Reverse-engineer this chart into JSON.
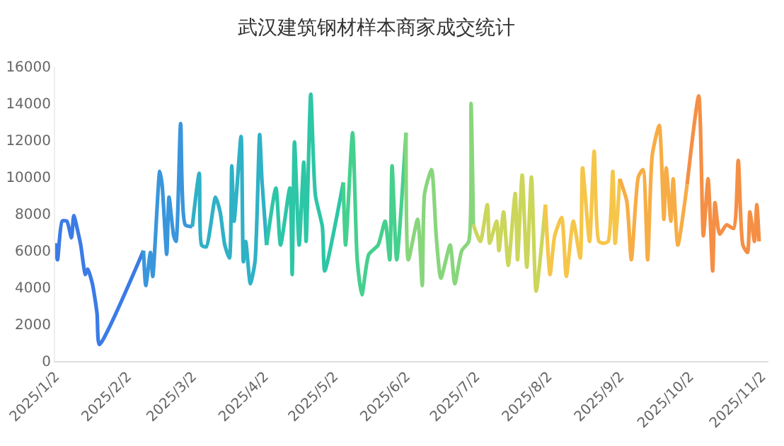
{
  "chart_data": {
    "type": "line",
    "title": "武汉建筑钢材样本商家成交统计",
    "xlim": [
      "2025-01-02",
      "2025-11-05"
    ],
    "xticks": [
      {
        "value": "2025-01-02",
        "label": "2025/1/2"
      },
      {
        "value": "2025-02-02",
        "label": "2025/2/2"
      },
      {
        "value": "2025-03-02",
        "label": "2025/3/2"
      },
      {
        "value": "2025-04-02",
        "label": "2025/4/2"
      },
      {
        "value": "2025-05-02",
        "label": "2025/5/2"
      },
      {
        "value": "2025-06-02",
        "label": "2025/6/2"
      },
      {
        "value": "2025-07-02",
        "label": "2025/7/2"
      },
      {
        "value": "2025-08-02",
        "label": "2025/8/2"
      },
      {
        "value": "2025-09-02",
        "label": "2025/9/2"
      },
      {
        "value": "2025-10-02",
        "label": "2025/10/2"
      },
      {
        "value": "2025-11-02",
        "label": "2025/11/2"
      }
    ],
    "ylim": [
      0,
      16000
    ],
    "yticks": [
      0,
      2000,
      4000,
      6000,
      8000,
      10000,
      12000,
      14000,
      16000
    ],
    "marker": "none",
    "line_style": "solid",
    "series": [
      {
        "color": "#3b7be6",
        "x": [
          "2025-01-02",
          "2025-01-03",
          "2025-01-05",
          "2025-01-07",
          "2025-01-09",
          "2025-01-10",
          "2025-01-12",
          "2025-01-13",
          "2025-01-15",
          "2025-01-16",
          "2025-01-18",
          "2025-01-20",
          "2025-01-21",
          "2025-02-09"
        ],
        "values": [
          6400,
          5500,
          7600,
          7600,
          6700,
          7900,
          6900,
          6300,
          4700,
          5000,
          4200,
          2600,
          900,
          6000
        ]
      },
      {
        "color": "#3996dc",
        "x": [
          "2025-02-09",
          "2025-02-10",
          "2025-02-12",
          "2025-02-13",
          "2025-02-16",
          "2025-02-17",
          "2025-02-19",
          "2025-02-20",
          "2025-02-22",
          "2025-02-23",
          "2025-02-25",
          "2025-02-27",
          "2025-03-02"
        ],
        "values": [
          6000,
          4100,
          5900,
          4600,
          10300,
          9600,
          5800,
          8900,
          6800,
          6500,
          12900,
          7400,
          7300
        ]
      },
      {
        "color": "#2fb1c6",
        "x": [
          "2025-03-02",
          "2025-03-05",
          "2025-03-06",
          "2025-03-08",
          "2025-03-12",
          "2025-03-14",
          "2025-03-16",
          "2025-03-18",
          "2025-03-19",
          "2025-03-20",
          "2025-03-23",
          "2025-03-24",
          "2025-03-25",
          "2025-03-27",
          "2025-03-29",
          "2025-03-31",
          "2025-04-01",
          "2025-04-03"
        ],
        "values": [
          7300,
          10200,
          6300,
          6200,
          8900,
          8100,
          6300,
          5600,
          10600,
          7600,
          12200,
          5400,
          6500,
          4200,
          5400,
          12300,
          9800,
          6300
        ]
      },
      {
        "color": "#2dc6a6",
        "x": [
          "2025-04-03",
          "2025-04-07",
          "2025-04-09",
          "2025-04-13",
          "2025-04-14",
          "2025-04-15",
          "2025-04-17",
          "2025-04-19",
          "2025-04-20",
          "2025-04-22",
          "2025-04-24",
          "2025-04-27",
          "2025-04-28",
          "2025-05-06"
        ],
        "values": [
          6300,
          9400,
          6300,
          9400,
          4700,
          11900,
          6300,
          10800,
          6500,
          14500,
          9000,
          7300,
          4900,
          9700
        ]
      },
      {
        "color": "#45d08e",
        "x": [
          "2025-05-06",
          "2025-05-07",
          "2025-05-10",
          "2025-05-12",
          "2025-05-14",
          "2025-05-17",
          "2025-05-21",
          "2025-05-24",
          "2025-05-26",
          "2025-05-27",
          "2025-05-29",
          "2025-06-02"
        ],
        "values": [
          9700,
          6300,
          12400,
          5500,
          3600,
          5800,
          6300,
          7600,
          5500,
          10600,
          5500,
          12400
        ]
      },
      {
        "color": "#88d67c",
        "x": [
          "2025-06-02",
          "2025-06-03",
          "2025-06-07",
          "2025-06-09",
          "2025-06-10",
          "2025-06-13",
          "2025-06-15",
          "2025-06-17",
          "2025-06-21",
          "2025-06-23",
          "2025-06-26",
          "2025-06-29",
          "2025-06-30",
          "2025-07-01"
        ],
        "values": [
          12400,
          5500,
          7700,
          4100,
          9100,
          10400,
          6800,
          4500,
          6300,
          4200,
          6000,
          6500,
          14000,
          7400
        ]
      },
      {
        "color": "#cbd65a",
        "x": [
          "2025-07-01",
          "2025-07-04",
          "2025-07-07",
          "2025-07-08",
          "2025-07-11",
          "2025-07-12",
          "2025-07-14",
          "2025-07-16",
          "2025-07-19",
          "2025-07-20",
          "2025-07-22",
          "2025-07-24",
          "2025-07-26",
          "2025-07-28",
          "2025-08-01"
        ],
        "values": [
          7400,
          6500,
          8500,
          6400,
          7600,
          6000,
          8100,
          5200,
          9100,
          5500,
          10100,
          5100,
          10000,
          3800,
          8500
        ]
      },
      {
        "color": "#f6c64a",
        "x": [
          "2025-08-01",
          "2025-08-03",
          "2025-08-05",
          "2025-08-08",
          "2025-08-10",
          "2025-08-13",
          "2025-08-16",
          "2025-08-17",
          "2025-08-20",
          "2025-08-22",
          "2025-08-24",
          "2025-08-26",
          "2025-08-28",
          "2025-08-30",
          "2025-08-31",
          "2025-09-02"
        ],
        "values": [
          8500,
          4700,
          6800,
          7800,
          4600,
          7600,
          5600,
          10500,
          6500,
          11400,
          6500,
          6400,
          6500,
          10300,
          6400,
          9900
        ]
      },
      {
        "color": "#f7ad45",
        "x": [
          "2025-09-02",
          "2025-09-05",
          "2025-09-07",
          "2025-09-10",
          "2025-09-12",
          "2025-09-14",
          "2025-09-16",
          "2025-09-19",
          "2025-09-21",
          "2025-09-22",
          "2025-09-24",
          "2025-09-25",
          "2025-09-27",
          "2025-10-01"
        ],
        "values": [
          9900,
          8700,
          5500,
          10000,
          10400,
          5500,
          11200,
          12800,
          7700,
          10500,
          7600,
          9900,
          6300,
          9600
        ]
      },
      {
        "color": "#f58f45",
        "x": [
          "2025-10-01",
          "2025-10-06",
          "2025-10-08",
          "2025-10-10",
          "2025-10-12",
          "2025-10-13",
          "2025-10-15",
          "2025-10-18",
          "2025-10-21",
          "2025-10-23",
          "2025-10-25",
          "2025-10-27",
          "2025-10-28",
          "2025-10-30",
          "2025-10-31",
          "2025-11-01"
        ],
        "values": [
          9600,
          14400,
          6800,
          9900,
          4900,
          8600,
          6900,
          7400,
          7200,
          10900,
          6300,
          5900,
          8100,
          6500,
          8500,
          6500
        ]
      }
    ]
  }
}
